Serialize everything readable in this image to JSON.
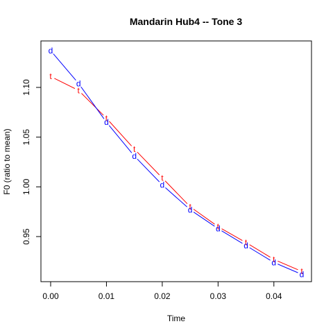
{
  "chart_data": {
    "type": "line",
    "title": "Mandarin Hub4 -- Tone 3",
    "xlabel": "Time",
    "ylabel": "F0 (ratio to mean)",
    "xlim": [
      0.0,
      0.045
    ],
    "ylim": [
      0.91,
      1.14
    ],
    "x": [
      0.0,
      0.005,
      0.01,
      0.015,
      0.02,
      0.025,
      0.03,
      0.035,
      0.04,
      0.045
    ],
    "xticks": [
      0.0,
      0.01,
      0.02,
      0.03,
      0.04
    ],
    "xtick_labels": [
      "0.00",
      "0.01",
      "0.02",
      "0.03",
      "0.04"
    ],
    "yticks": [
      0.95,
      1.0,
      1.05,
      1.1
    ],
    "ytick_labels": [
      "0.95",
      "1.00",
      "1.05",
      "1.10"
    ],
    "grid": false,
    "legend": "none",
    "series": [
      {
        "marker": "t",
        "color": "#ff0000",
        "values": [
          1.111,
          1.097,
          1.069,
          1.038,
          1.009,
          0.98,
          0.96,
          0.944,
          0.927,
          0.915
        ]
      },
      {
        "marker": "d",
        "color": "#0000ff",
        "values": [
          1.137,
          1.104,
          1.065,
          1.031,
          1.002,
          0.977,
          0.958,
          0.941,
          0.924,
          0.912
        ]
      }
    ]
  }
}
